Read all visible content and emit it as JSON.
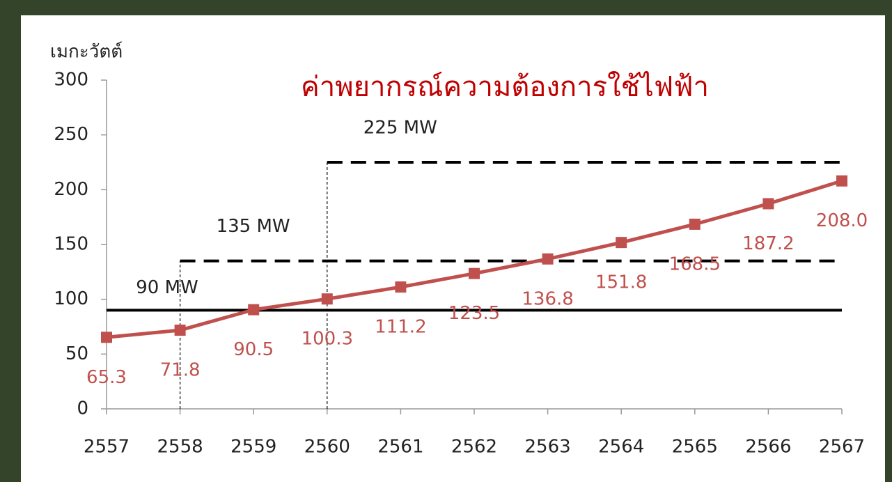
{
  "chart_data": {
    "type": "line",
    "title": "ค่าพยากรณ์ความต้องการใช้ไฟฟ้า",
    "y_label": "เมกะวัตต์",
    "categories": [
      "2557",
      "2558",
      "2559",
      "2560",
      "2561",
      "2562",
      "2563",
      "2564",
      "2565",
      "2566",
      "2567"
    ],
    "values": [
      65.3,
      71.8,
      90.5,
      100.3,
      111.2,
      123.5,
      136.8,
      151.8,
      168.5,
      187.2,
      208.0
    ],
    "value_labels": [
      "65.3",
      "71.8",
      "90.5",
      "100.3",
      "111.2",
      "123.5",
      "136.8",
      "151.8",
      "168.5",
      "187.2",
      "208.0"
    ],
    "color": "#c0504d",
    "reference_lines": [
      {
        "name": "90 MW",
        "values": [
          90,
          90,
          90,
          90,
          90,
          90,
          90,
          90,
          90,
          90,
          90
        ],
        "dashed": false,
        "drop_line": false
      },
      {
        "name": "135 MW",
        "values": [
          null,
          135,
          135,
          135,
          135,
          135,
          135,
          135,
          135,
          135,
          135
        ],
        "dashed": true,
        "drop_line": true
      },
      {
        "name": "225 MW",
        "values": [
          null,
          null,
          null,
          225,
          225,
          225,
          225,
          225,
          225,
          225,
          225
        ],
        "dashed": true,
        "drop_line": true
      }
    ],
    "ylim": [
      0,
      300
    ],
    "yticks": [
      0,
      50,
      100,
      150,
      200,
      250,
      300
    ],
    "grid": false
  }
}
